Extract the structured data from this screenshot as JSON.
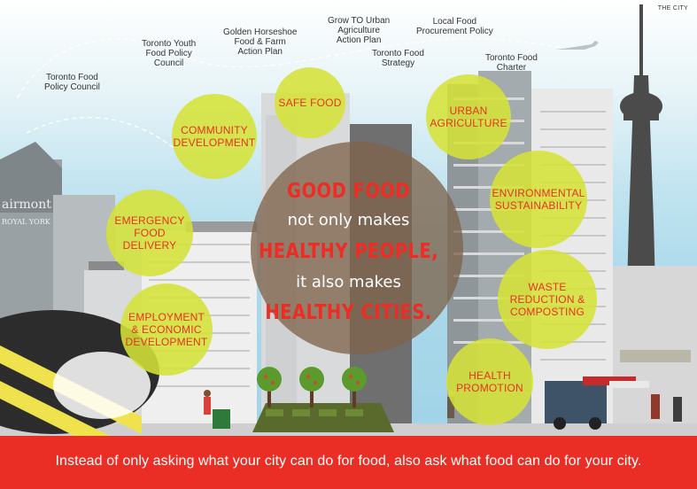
{
  "corner_label": "THE CITY",
  "policies": [
    {
      "id": "tfpc",
      "text": "Toronto Food\nPolicy Council"
    },
    {
      "id": "youth",
      "text": "Toronto Youth\nFood Policy\nCouncil"
    },
    {
      "id": "horseshoe",
      "text": "Golden Horseshoe\nFood & Farm\nAction Plan"
    },
    {
      "id": "urbanag",
      "text": "Grow TO Urban\nAgriculture\nAction Plan"
    },
    {
      "id": "tfs",
      "text": "Toronto Food\nStrategy"
    },
    {
      "id": "procurement",
      "text": "Local Food\nProcurement Policy"
    },
    {
      "id": "charter",
      "text": "Toronto Food\nCharter"
    }
  ],
  "bubbles": {
    "community": "COMMUNITY\nDEVELOPMENT",
    "safe_food": "SAFE FOOD",
    "urban_agriculture": "URBAN\nAGRICULTURE",
    "environmental": "ENVIRONMENTAL\nSUSTAINABILITY",
    "emergency": "EMERGENCY\nFOOD\nDELIVERY",
    "waste": "WASTE\nREDUCTION &\nCOMPOSTING",
    "employment": "EMPLOYMENT\n& ECONOMIC\nDEVELOPMENT",
    "health": "HEALTH\nPROMOTION"
  },
  "center": {
    "line1": "GOOD FOOD",
    "line2": "not only makes",
    "line3": "HEALTHY PEOPLE,",
    "line4": "it also makes",
    "line5": "HEALTHY CITIES."
  },
  "building_sign": {
    "name": "airmont",
    "sub": "ROYAL YORK"
  },
  "footer": "Instead of only asking what your city can do for food,  also ask what food can do for your city.",
  "colors": {
    "accent_red": "#ea2e25",
    "bubble_green": "#d5e238",
    "center_brown": "#7d644b",
    "sky": "#a9d8ea"
  }
}
